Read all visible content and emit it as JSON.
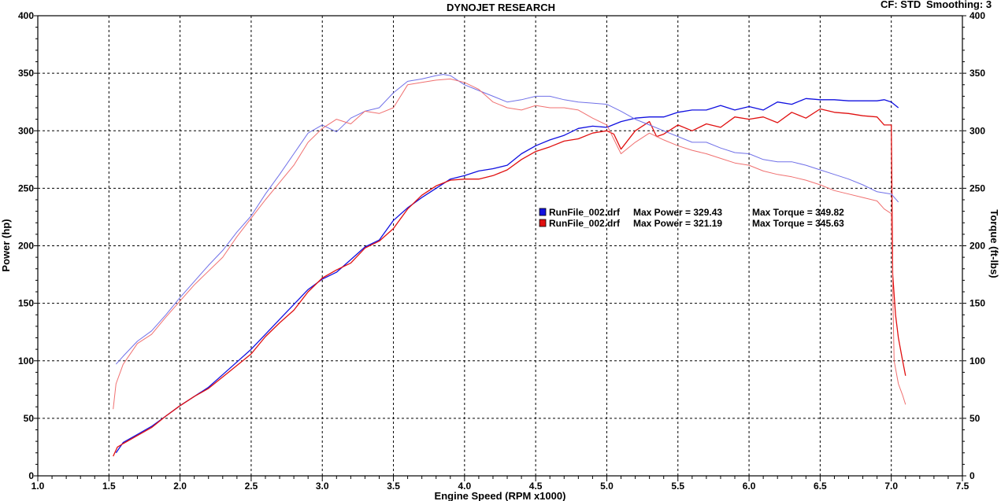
{
  "header": {
    "title": "DYNOJET RESEARCH",
    "cf_label": "CF: STD",
    "smoothing_label": "Smoothing: 3"
  },
  "legend": [
    {
      "file": "RunFile_002.drf",
      "max_power": "Max Power = 329.43",
      "max_torque": "Max Torque = 349.82",
      "color": "#1010e0"
    },
    {
      "file": "RunFile_002.drf",
      "max_power": "Max Power = 321.19",
      "max_torque": "Max Torque = 345.63",
      "color": "#e01010"
    }
  ],
  "chart_data": {
    "type": "line",
    "xlabel": "Engine Speed (RPM x1000)",
    "ylabel": "Power (hp)",
    "y2label": "Torque (ft-lbs)",
    "xlim": [
      1.0,
      7.5
    ],
    "ylim": [
      0,
      400
    ],
    "y2lim": [
      0,
      400
    ],
    "x_ticks": [
      "1.0",
      "1.5",
      "2.0",
      "2.5",
      "3.0",
      "3.5",
      "4.0",
      "4.5",
      "5.0",
      "5.5",
      "6.0",
      "6.5",
      "7.0",
      "7.5"
    ],
    "y_ticks": [
      "0",
      "50",
      "100",
      "150",
      "200",
      "250",
      "300",
      "350",
      "400"
    ],
    "grid": true,
    "series": [
      {
        "name": "RunFile_002.drf Max Power = 329.43",
        "kind": "power",
        "color": "#1010e0",
        "x": [
          1.55,
          1.6,
          1.7,
          1.8,
          1.9,
          2.0,
          2.1,
          2.2,
          2.3,
          2.4,
          2.5,
          2.6,
          2.7,
          2.8,
          2.9,
          3.0,
          3.1,
          3.2,
          3.3,
          3.4,
          3.5,
          3.6,
          3.7,
          3.8,
          3.9,
          4.0,
          4.1,
          4.2,
          4.3,
          4.4,
          4.5,
          4.6,
          4.7,
          4.8,
          4.9,
          5.0,
          5.1,
          5.2,
          5.3,
          5.4,
          5.5,
          5.6,
          5.7,
          5.8,
          5.9,
          6.0,
          6.1,
          6.2,
          6.3,
          6.4,
          6.5,
          6.6,
          6.7,
          6.8,
          6.9,
          6.95,
          7.0,
          7.05
        ],
        "values": [
          20,
          29,
          36,
          43,
          52,
          61,
          69,
          77,
          88,
          99,
          110,
          123,
          136,
          149,
          162,
          171,
          177,
          188,
          199,
          205,
          222,
          233,
          242,
          250,
          258,
          261,
          265,
          267,
          270,
          280,
          287,
          292,
          296,
          302,
          304,
          303,
          308,
          311,
          312,
          312,
          316,
          318,
          318,
          322,
          318,
          321,
          318,
          325,
          323,
          328,
          327,
          327,
          326,
          326,
          326,
          327,
          325,
          320
        ]
      },
      {
        "name": "RunFile_002.drf Max Power = 321.19",
        "kind": "power",
        "color": "#e01010",
        "x": [
          1.53,
          1.56,
          1.6,
          1.7,
          1.8,
          1.9,
          2.0,
          2.1,
          2.2,
          2.3,
          2.4,
          2.5,
          2.6,
          2.7,
          2.8,
          2.9,
          3.0,
          3.1,
          3.2,
          3.3,
          3.4,
          3.5,
          3.6,
          3.7,
          3.8,
          3.9,
          4.0,
          4.1,
          4.2,
          4.3,
          4.4,
          4.5,
          4.6,
          4.7,
          4.8,
          4.9,
          5.0,
          5.05,
          5.1,
          5.2,
          5.3,
          5.35,
          5.4,
          5.5,
          5.6,
          5.7,
          5.8,
          5.9,
          6.0,
          6.1,
          6.2,
          6.3,
          6.4,
          6.5,
          6.6,
          6.7,
          6.8,
          6.9,
          6.95,
          7.0,
          7.01,
          7.03,
          7.05,
          7.08,
          7.1
        ],
        "values": [
          17,
          25,
          28,
          35,
          42,
          52,
          61,
          69,
          76,
          86,
          96,
          106,
          121,
          133,
          144,
          160,
          172,
          179,
          185,
          198,
          204,
          215,
          232,
          244,
          252,
          257,
          258,
          258,
          261,
          266,
          275,
          282,
          286,
          291,
          293,
          298,
          300,
          297,
          284,
          300,
          308,
          295,
          297,
          305,
          300,
          306,
          303,
          312,
          310,
          312,
          307,
          316,
          311,
          319,
          316,
          315,
          313,
          312,
          305,
          305,
          175,
          140,
          120,
          100,
          87
        ]
      },
      {
        "name": "RunFile_002.drf Max Torque = 349.82",
        "kind": "torque",
        "color": "#7070e8",
        "x": [
          1.55,
          1.6,
          1.7,
          1.8,
          1.9,
          2.0,
          2.1,
          2.2,
          2.3,
          2.4,
          2.5,
          2.6,
          2.7,
          2.8,
          2.9,
          3.0,
          3.1,
          3.2,
          3.3,
          3.4,
          3.5,
          3.6,
          3.7,
          3.8,
          3.85,
          3.9,
          4.0,
          4.1,
          4.2,
          4.3,
          4.4,
          4.5,
          4.6,
          4.7,
          4.8,
          4.9,
          5.0,
          5.1,
          5.2,
          5.3,
          5.4,
          5.5,
          5.6,
          5.7,
          5.8,
          5.9,
          6.0,
          6.1,
          6.2,
          6.3,
          6.4,
          6.5,
          6.6,
          6.7,
          6.8,
          6.9,
          7.0,
          7.05
        ],
        "values": [
          97,
          104,
          117,
          126,
          140,
          155,
          169,
          183,
          196,
          212,
          226,
          245,
          262,
          280,
          298,
          305,
          299,
          311,
          317,
          320,
          333,
          343,
          345,
          348,
          349,
          348,
          340,
          335,
          330,
          325,
          327,
          330,
          330,
          327,
          325,
          324,
          323,
          317,
          310,
          305,
          300,
          295,
          290,
          290,
          285,
          281,
          280,
          275,
          273,
          273,
          270,
          266,
          262,
          258,
          253,
          247,
          245,
          238
        ]
      },
      {
        "name": "RunFile_002.drf Max Torque = 345.63",
        "kind": "torque",
        "color": "#f07070",
        "x": [
          1.53,
          1.55,
          1.6,
          1.7,
          1.8,
          1.9,
          2.0,
          2.1,
          2.2,
          2.3,
          2.4,
          2.5,
          2.6,
          2.7,
          2.8,
          2.9,
          3.0,
          3.1,
          3.2,
          3.3,
          3.4,
          3.5,
          3.6,
          3.7,
          3.8,
          3.9,
          4.0,
          4.1,
          4.2,
          4.3,
          4.4,
          4.5,
          4.6,
          4.7,
          4.8,
          4.9,
          5.0,
          5.1,
          5.2,
          5.3,
          5.4,
          5.5,
          5.6,
          5.7,
          5.8,
          5.9,
          6.0,
          6.1,
          6.2,
          6.3,
          6.4,
          6.5,
          6.6,
          6.7,
          6.8,
          6.9,
          6.95,
          7.0,
          7.02,
          7.05,
          7.08,
          7.1
        ],
        "values": [
          58,
          80,
          97,
          115,
          123,
          138,
          152,
          166,
          178,
          190,
          208,
          224,
          240,
          255,
          270,
          290,
          302,
          310,
          306,
          317,
          315,
          320,
          340,
          342,
          344,
          345,
          342,
          336,
          325,
          320,
          318,
          322,
          320,
          320,
          318,
          311,
          305,
          280,
          290,
          298,
          292,
          287,
          283,
          280,
          276,
          272,
          270,
          265,
          262,
          260,
          257,
          253,
          248,
          245,
          242,
          239,
          232,
          228,
          100,
          80,
          70,
          62
        ]
      }
    ]
  }
}
